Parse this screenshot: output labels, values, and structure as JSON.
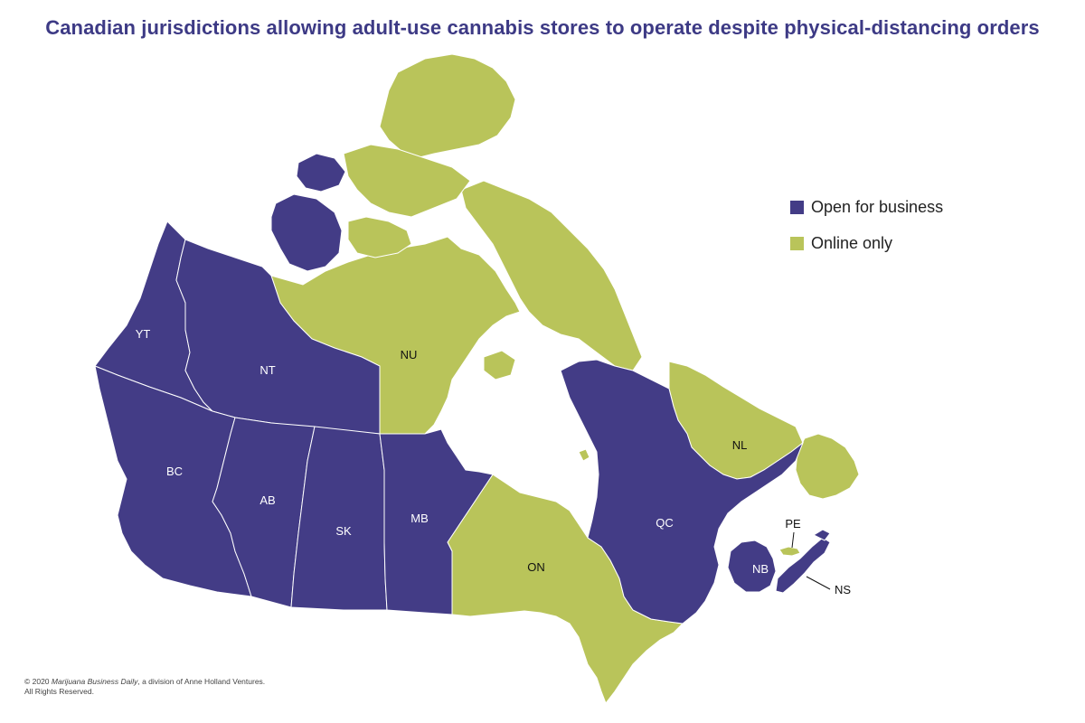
{
  "title": "Canadian jurisdictions allowing adult-use cannabis stores to operate despite physical-distancing orders",
  "colors": {
    "open": "#433c86",
    "online": "#b9c45a",
    "title": "#3d3a85",
    "border": "#ffffff"
  },
  "legend": [
    {
      "label": "Open for business",
      "color": "#433c86"
    },
    {
      "label": "Online only",
      "color": "#b9c45a"
    }
  ],
  "regions": [
    {
      "code": "YT",
      "status": "Open for business"
    },
    {
      "code": "NT",
      "status": "Open for business"
    },
    {
      "code": "NU",
      "status": "Online only"
    },
    {
      "code": "BC",
      "status": "Open for business"
    },
    {
      "code": "AB",
      "status": "Open for business"
    },
    {
      "code": "SK",
      "status": "Open for business"
    },
    {
      "code": "MB",
      "status": "Open for business"
    },
    {
      "code": "ON",
      "status": "Online only"
    },
    {
      "code": "QC",
      "status": "Open for business"
    },
    {
      "code": "NL",
      "status": "Online only"
    },
    {
      "code": "NB",
      "status": "Open for business"
    },
    {
      "code": "NS",
      "status": "Open for business"
    },
    {
      "code": "PE",
      "status": "Online only"
    }
  ],
  "footer": {
    "prefix": "© 2020 ",
    "publication": "Marijuana Business Daily",
    "suffix": ", a division of Anne Holland Ventures.",
    "line2": "All Rights Reserved."
  }
}
